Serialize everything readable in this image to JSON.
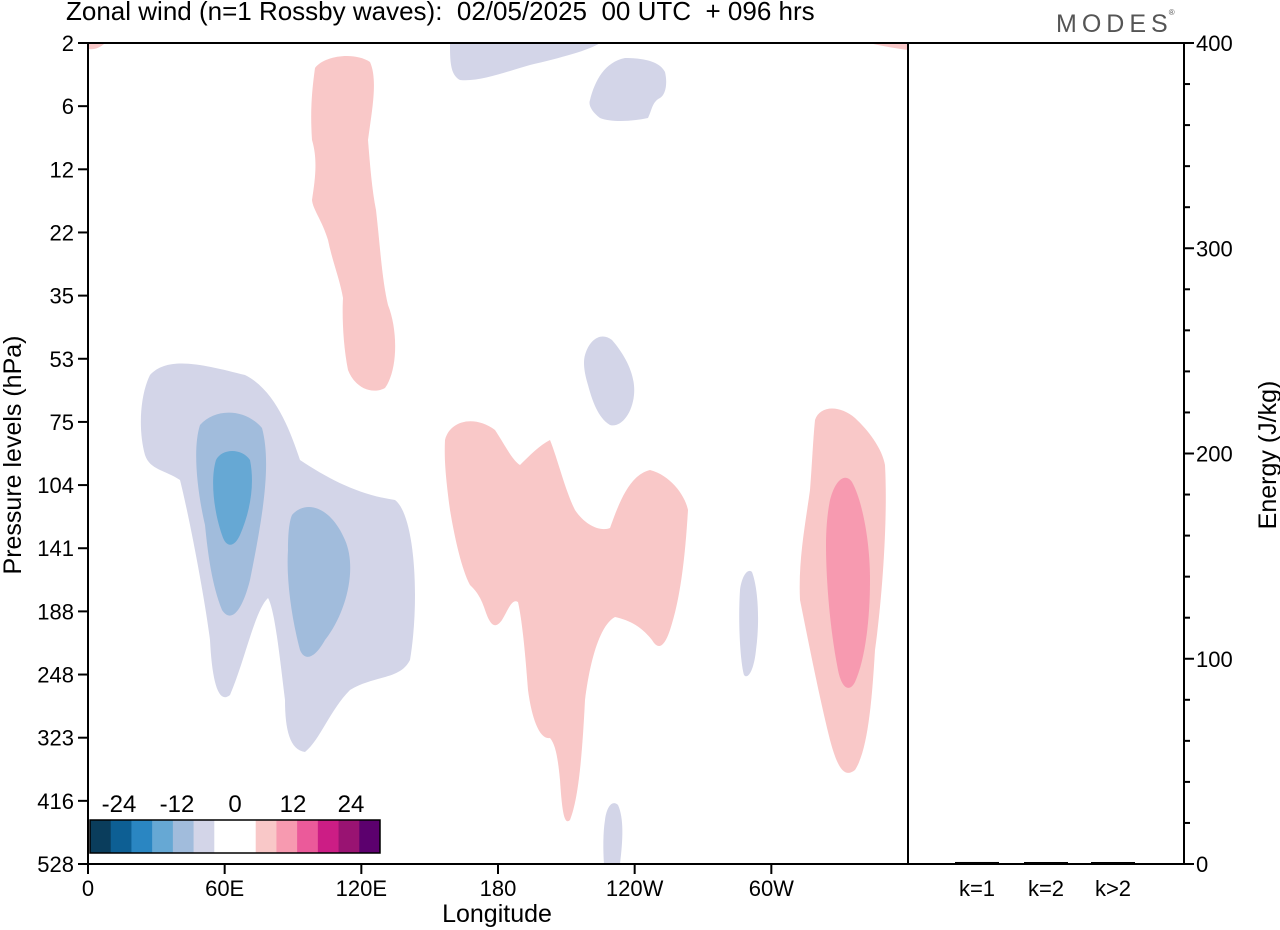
{
  "title": "Zonal wind (n=1 Rossby waves):  02/05/2025  00 UTC  + 096 hrs",
  "brand": "MODES",
  "brand_mark": "®",
  "chart_data": [
    {
      "type": "heatmap",
      "title": "Zonal wind (n=1 Rossby waves):  02/05/2025  00 UTC  + 096 hrs",
      "xlabel": "Longitude",
      "ylabel": "Pressure levels (hPa)",
      "x_ticks": [
        "0",
        "60E",
        "120E",
        "180",
        "120W",
        "60W"
      ],
      "x_tick_values": [
        0,
        60,
        120,
        180,
        240,
        300
      ],
      "xlim": [
        0,
        360
      ],
      "y_ticks": [
        "2",
        "6",
        "12",
        "22",
        "35",
        "53",
        "75",
        "104",
        "141",
        "188",
        "248",
        "323",
        "416",
        "528"
      ],
      "y_order": "top-to-bottom",
      "grid": false,
      "colorbar": {
        "labels": [
          "-24",
          "-12",
          "0",
          "12",
          "24"
        ],
        "label_positions": [
          -24,
          -12,
          0,
          12,
          24
        ],
        "levels": [
          -30,
          -26,
          -22,
          -18,
          -14,
          -10,
          -6,
          2,
          6,
          10,
          14,
          18,
          22,
          26,
          30
        ],
        "colors": [
          "#0a3d5c",
          "#0d5f94",
          "#2a86c2",
          "#66a8d4",
          "#a1bcdc",
          "#d3d5e8",
          "#ffffff",
          "#ffffff",
          "#f9c8c8",
          "#f79ab0",
          "#eb5a9a",
          "#cc1d85",
          "#991372",
          "#5c006e"
        ],
        "placement": "bottom-left"
      },
      "features": [
        {
          "sign": "negative",
          "approx_value": -4,
          "lon_range": [
            20,
            140
          ],
          "level_range": [
            "53",
            "323"
          ]
        },
        {
          "sign": "negative",
          "approx_value": -10,
          "lon_range": [
            42,
            67
          ],
          "level_range": [
            "75",
            "188"
          ]
        },
        {
          "sign": "negative",
          "approx_value": -14,
          "lon_range": [
            53,
            65
          ],
          "level_range": [
            "104",
            "141"
          ]
        },
        {
          "sign": "negative",
          "approx_value": -10,
          "lon_range": [
            88,
            112
          ],
          "level_range": [
            "141",
            "248"
          ]
        },
        {
          "sign": "positive",
          "approx_value": 4,
          "lon_range": [
            98,
            128
          ],
          "level_range": [
            "2",
            "53"
          ]
        },
        {
          "sign": "positive",
          "approx_value": 4,
          "lon_range": [
            158,
            262
          ],
          "level_range": [
            "75",
            "416"
          ]
        },
        {
          "sign": "positive",
          "approx_value": 4,
          "lon_range": [
            312,
            352
          ],
          "level_range": [
            "75",
            "323"
          ]
        },
        {
          "sign": "positive",
          "approx_value": 10,
          "lon_range": [
            327,
            345
          ],
          "level_range": [
            "104",
            "248"
          ]
        },
        {
          "sign": "negative",
          "approx_value": -4,
          "lon_range": [
            160,
            205
          ],
          "level_range": [
            "2",
            "6"
          ]
        },
        {
          "sign": "negative",
          "approx_value": -4,
          "lon_range": [
            222,
            255
          ],
          "level_range": [
            "2",
            "6"
          ]
        },
        {
          "sign": "negative",
          "approx_value": -4,
          "lon_range": [
            218,
            240
          ],
          "level_range": [
            "53",
            "75"
          ]
        },
        {
          "sign": "negative",
          "approx_value": -4,
          "lon_range": [
            286,
            296
          ],
          "level_range": [
            "188",
            "248"
          ]
        },
        {
          "sign": "negative",
          "approx_value": -4,
          "lon_range": [
            226,
            236
          ],
          "level_range": [
            "416",
            "528"
          ]
        }
      ]
    },
    {
      "type": "bar",
      "categories": [
        "k=1",
        "k=2",
        "k>2"
      ],
      "values": [
        0.5,
        0.2,
        0.2
      ],
      "ylabel": "Energy (J/kg)",
      "ylim": [
        0,
        400
      ],
      "y_ticks": [
        0,
        100,
        200,
        300,
        400
      ],
      "bar_color": "#000000"
    }
  ]
}
